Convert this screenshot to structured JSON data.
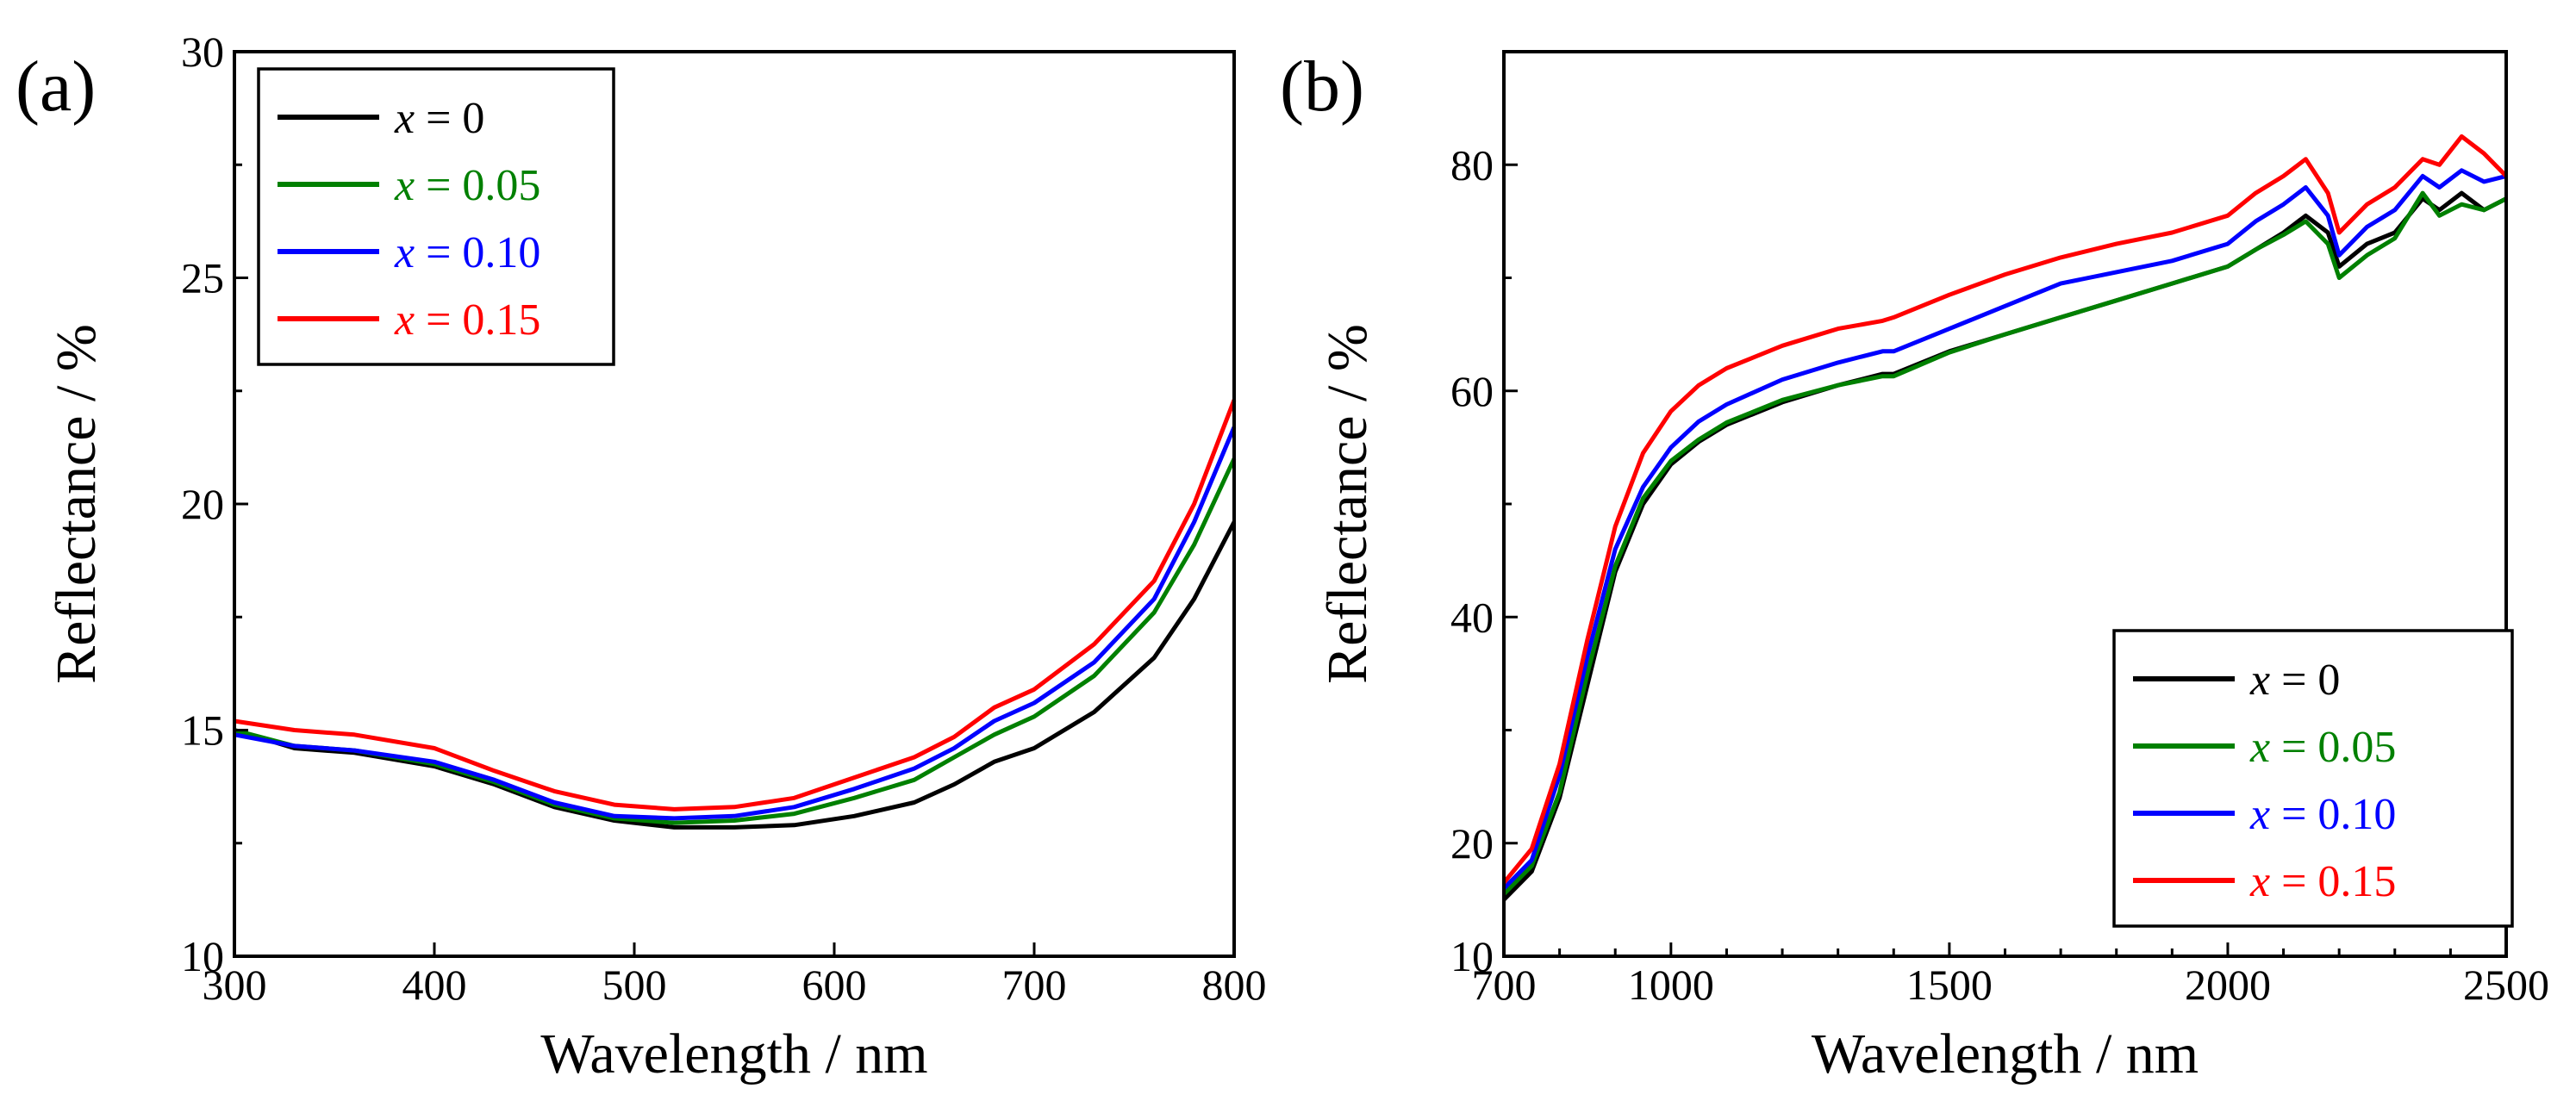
{
  "chart_data": [
    {
      "panel": "(a)",
      "type": "line",
      "xlabel": "Wavelength / nm",
      "ylabel": "Reflectance / %",
      "xlim": [
        300,
        800
      ],
      "ylim": [
        10,
        30
      ],
      "xticks": [
        300,
        400,
        500,
        600,
        700,
        800
      ],
      "yticks": [
        10,
        15,
        20,
        25,
        30
      ],
      "legend_position": "top-left",
      "series": [
        {
          "name": "x = 0",
          "var": "x",
          "value_text": "= 0",
          "color": "#000000",
          "x": [
            300,
            330,
            360,
            400,
            430,
            460,
            490,
            520,
            550,
            580,
            610,
            640,
            660,
            680,
            700,
            730,
            760,
            780,
            800
          ],
          "y": [
            15.0,
            14.6,
            14.5,
            14.2,
            13.8,
            13.3,
            13.0,
            12.85,
            12.85,
            12.9,
            13.1,
            13.4,
            13.8,
            14.3,
            14.6,
            15.4,
            16.6,
            17.9,
            19.6
          ]
        },
        {
          "name": "x = 0.05",
          "var": "x",
          "value_text": "= 0.05",
          "color": "#008000",
          "x": [
            300,
            330,
            360,
            400,
            430,
            460,
            490,
            520,
            550,
            580,
            610,
            640,
            660,
            680,
            700,
            730,
            760,
            780,
            800
          ],
          "y": [
            15.0,
            14.65,
            14.55,
            14.25,
            13.85,
            13.35,
            13.05,
            12.95,
            13.0,
            13.15,
            13.5,
            13.9,
            14.4,
            14.9,
            15.3,
            16.2,
            17.6,
            19.1,
            21.0
          ]
        },
        {
          "name": "x = 0.10",
          "var": "x",
          "value_text": "= 0.10",
          "color": "#0000ff",
          "x": [
            300,
            330,
            360,
            400,
            430,
            460,
            490,
            520,
            550,
            580,
            610,
            640,
            660,
            680,
            700,
            730,
            760,
            780,
            800
          ],
          "y": [
            14.9,
            14.65,
            14.55,
            14.3,
            13.9,
            13.4,
            13.1,
            13.05,
            13.1,
            13.3,
            13.7,
            14.15,
            14.6,
            15.2,
            15.6,
            16.5,
            17.9,
            19.6,
            21.7
          ]
        },
        {
          "name": "x = 0.15",
          "var": "x",
          "value_text": "= 0.15",
          "color": "#ff0000",
          "x": [
            300,
            330,
            360,
            400,
            430,
            460,
            490,
            520,
            550,
            580,
            610,
            640,
            660,
            680,
            700,
            730,
            760,
            780,
            800
          ],
          "y": [
            15.2,
            15.0,
            14.9,
            14.6,
            14.1,
            13.65,
            13.35,
            13.25,
            13.3,
            13.5,
            13.95,
            14.4,
            14.85,
            15.5,
            15.9,
            16.9,
            18.3,
            20.0,
            22.3
          ]
        }
      ]
    },
    {
      "panel": "(b)",
      "type": "line",
      "xlabel": "Wavelength / nm",
      "ylabel": "Reflectance / %",
      "xlim": [
        700,
        2500
      ],
      "ylim": [
        10,
        90
      ],
      "xticks": [
        700,
        1000,
        1500,
        2000,
        2500
      ],
      "yticks": [
        10,
        20,
        40,
        60,
        80
      ],
      "legend_position": "bottom-right",
      "series": [
        {
          "name": "x = 0",
          "var": "x",
          "value_text": "= 0",
          "color": "#000000",
          "x": [
            700,
            750,
            800,
            850,
            900,
            950,
            1000,
            1050,
            1100,
            1200,
            1300,
            1380,
            1400,
            1500,
            1600,
            1700,
            1800,
            1900,
            2000,
            2050,
            2100,
            2140,
            2180,
            2200,
            2250,
            2300,
            2350,
            2380,
            2420,
            2460,
            2500
          ],
          "y": [
            15,
            17.5,
            24,
            34,
            44,
            50,
            53.5,
            55.5,
            57,
            59,
            60.5,
            61.5,
            61.5,
            63.5,
            65,
            66.5,
            68,
            69.5,
            71,
            72.5,
            74,
            75.5,
            74,
            71,
            73,
            74,
            77,
            76,
            77.5,
            76,
            77
          ]
        },
        {
          "name": "x = 0.05",
          "var": "x",
          "value_text": "= 0.05",
          "color": "#008000",
          "x": [
            700,
            750,
            800,
            850,
            900,
            950,
            1000,
            1050,
            1100,
            1200,
            1300,
            1380,
            1400,
            1500,
            1600,
            1700,
            1800,
            1900,
            2000,
            2050,
            2100,
            2140,
            2180,
            2200,
            2250,
            2300,
            2350,
            2380,
            2420,
            2460,
            2500
          ],
          "y": [
            15.5,
            18,
            24.5,
            35,
            44.5,
            50.5,
            53.8,
            55.7,
            57.2,
            59.2,
            60.5,
            61.3,
            61.3,
            63.4,
            65,
            66.5,
            68,
            69.5,
            71,
            72.5,
            73.8,
            75,
            73,
            70,
            72,
            73.5,
            77.5,
            75.5,
            76.5,
            76,
            77
          ]
        },
        {
          "name": "x = 0.10",
          "var": "x",
          "value_text": "= 0.10",
          "color": "#0000ff",
          "x": [
            700,
            750,
            800,
            850,
            900,
            950,
            1000,
            1050,
            1100,
            1200,
            1300,
            1380,
            1400,
            1500,
            1600,
            1700,
            1800,
            1900,
            2000,
            2050,
            2100,
            2140,
            2180,
            2200,
            2250,
            2300,
            2350,
            2380,
            2420,
            2460,
            2500
          ],
          "y": [
            16,
            18.5,
            26,
            36.5,
            46,
            51.5,
            55,
            57.3,
            58.8,
            61,
            62.5,
            63.5,
            63.5,
            65.5,
            67.5,
            69.5,
            70.5,
            71.5,
            73,
            75,
            76.5,
            78,
            75.5,
            72,
            74.5,
            76,
            79,
            78,
            79.5,
            78.5,
            79
          ]
        },
        {
          "name": "x = 0.15",
          "var": "x",
          "value_text": "= 0.15",
          "color": "#ff0000",
          "x": [
            700,
            750,
            800,
            850,
            900,
            950,
            1000,
            1050,
            1100,
            1200,
            1300,
            1380,
            1400,
            1500,
            1600,
            1700,
            1800,
            1900,
            2000,
            2050,
            2100,
            2140,
            2180,
            2200,
            2250,
            2300,
            2350,
            2380,
            2420,
            2460,
            2500
          ],
          "y": [
            16.5,
            19.5,
            27,
            38,
            48,
            54.5,
            58.2,
            60.5,
            62,
            64,
            65.5,
            66.2,
            66.5,
            68.5,
            70.3,
            71.8,
            73,
            74,
            75.5,
            77.5,
            79,
            80.5,
            77.5,
            74,
            76.5,
            78,
            80.5,
            80,
            82.5,
            81,
            79
          ]
        }
      ]
    }
  ]
}
